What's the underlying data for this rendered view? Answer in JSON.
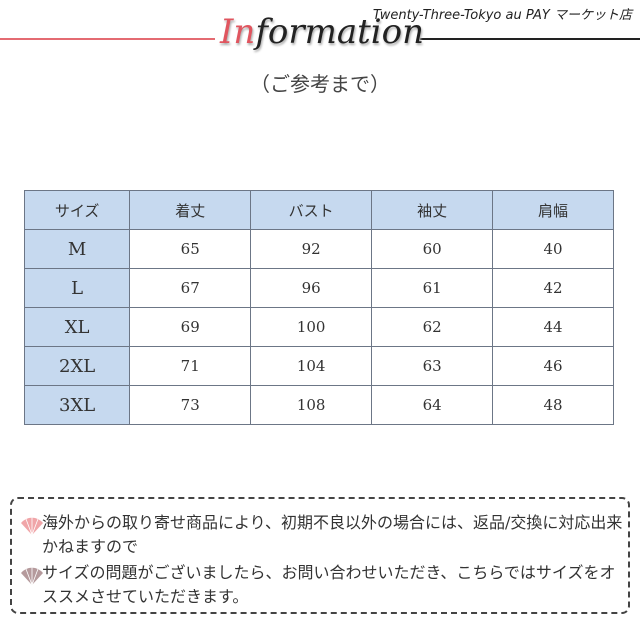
{
  "header": {
    "shop_name": "Twenty-Three-Tokyo au PAY マーケット店",
    "title_highlight": "In",
    "title_rest": "formation",
    "caption": "（ご参考まで）",
    "colors": {
      "accent": "#e0555f",
      "line_left": "#e46b72"
    }
  },
  "table": {
    "headers": [
      "サイズ",
      "着丈",
      "バスト",
      "袖丈",
      "肩幅"
    ],
    "rows": [
      [
        "M",
        "65",
        "92",
        "60",
        "40"
      ],
      [
        "L",
        "67",
        "96",
        "61",
        "42"
      ],
      [
        "XL",
        "69",
        "100",
        "62",
        "44"
      ],
      [
        "2XL",
        "71",
        "104",
        "63",
        "46"
      ],
      [
        "3XL",
        "73",
        "108",
        "64",
        "48"
      ]
    ],
    "header_bg": "#c6d9ef"
  },
  "notes": [
    {
      "icon": "folding-fan-icon",
      "color": "#f0a5a8",
      "text": "海外からの取り寄せ商品により、初期不良以外の場合には、返品/交換に対応出来かねますので"
    },
    {
      "icon": "folding-fan-icon",
      "color": "#b59a9c",
      "text": "サイズの問題がございましたら、お問い合わせいただき、こちらではサイズをオススメさせていただきます。"
    }
  ]
}
